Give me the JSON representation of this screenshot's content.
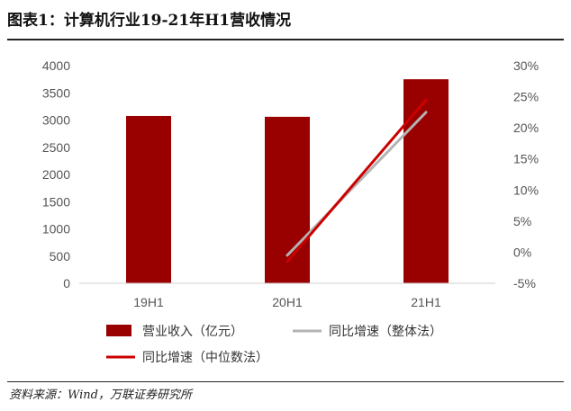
{
  "title": "图表1：计算机行业19-21年H1营收情况",
  "source": "资料来源：Wind，万联证券研究所",
  "chart_data": {
    "type": "bar",
    "categories": [
      "19H1",
      "20H1",
      "21H1"
    ],
    "series": [
      {
        "name": "营业收入（亿元）",
        "type": "bar",
        "axis": "left",
        "color": "#990000",
        "values": [
          3075,
          3060,
          3750
        ]
      },
      {
        "name": "同比增速（整体法）",
        "type": "line",
        "axis": "right",
        "color": "#b3b3b3",
        "values": [
          null,
          -0.5,
          22.5
        ]
      },
      {
        "name": "同比增速（中位数法）",
        "type": "line",
        "axis": "right",
        "color": "#cc0000",
        "values": [
          null,
          -1.5,
          24.5
        ]
      }
    ],
    "y_left": {
      "min": 0,
      "max": 4000,
      "step": 500,
      "tick_labels": [
        "0",
        "500",
        "1000",
        "1500",
        "2000",
        "2500",
        "3000",
        "3500",
        "4000"
      ]
    },
    "y_right": {
      "min": -5,
      "max": 30,
      "step": 5,
      "unit": "%",
      "tick_labels": [
        "-5%",
        "0%",
        "5%",
        "10%",
        "15%",
        "20%",
        "25%",
        "30%"
      ]
    },
    "legend_position": "bottom",
    "grid": false
  }
}
